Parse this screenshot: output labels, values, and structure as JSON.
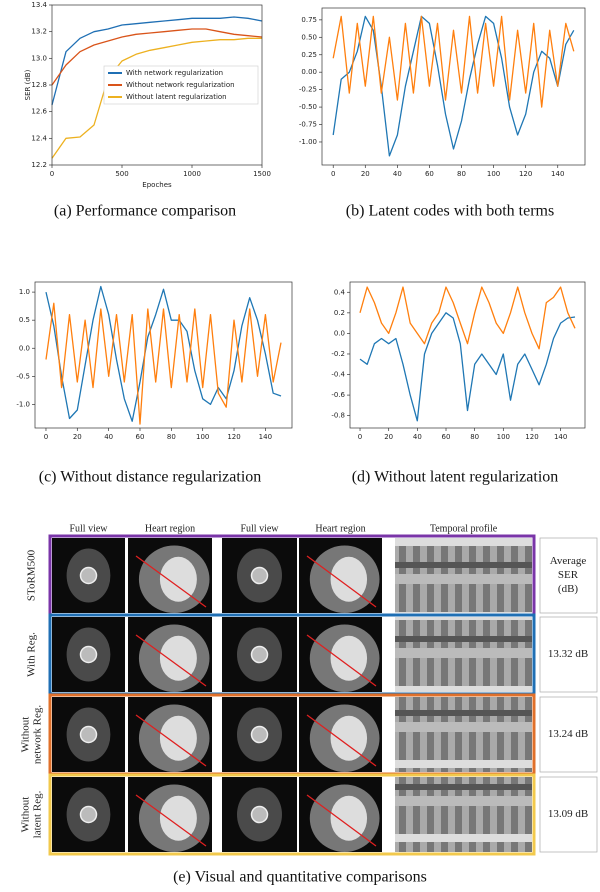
{
  "chart_data": [
    {
      "type": "line",
      "caption": "(a) Performance comparison",
      "xlabel": "Epoches",
      "ylabel": "SER (dB)",
      "x": [
        0,
        100,
        200,
        300,
        400,
        500,
        600,
        700,
        800,
        900,
        1000,
        1100,
        1200,
        1300,
        1400,
        1500
      ],
      "xlim": [
        0,
        1500
      ],
      "xticks": [
        0,
        500,
        1000,
        1500
      ],
      "ylim": [
        12.2,
        13.4
      ],
      "yticks": [
        12.2,
        12.4,
        12.6,
        12.8,
        {
          "value": 13,
          "label": "13.0"
        },
        13.2,
        13.4
      ],
      "legend": "right",
      "series": [
        {
          "name": "With network regularization",
          "color": "#1f6fb4",
          "values": [
            12.65,
            13.05,
            13.15,
            13.2,
            13.22,
            13.25,
            13.26,
            13.27,
            13.28,
            13.29,
            13.3,
            13.3,
            13.3,
            13.31,
            13.3,
            13.28
          ]
        },
        {
          "name": "Without network regularization",
          "color": "#d9541a",
          "values": [
            12.8,
            12.95,
            13.05,
            13.1,
            13.13,
            13.16,
            13.18,
            13.19,
            13.2,
            13.21,
            13.22,
            13.22,
            13.2,
            13.18,
            13.17,
            13.16
          ]
        },
        {
          "name": "Without latent regularization",
          "color": "#edb120",
          "values": [
            12.25,
            12.4,
            12.41,
            12.5,
            12.85,
            12.98,
            13.03,
            13.06,
            13.08,
            13.1,
            13.12,
            13.13,
            13.14,
            13.14,
            13.15,
            13.15
          ]
        }
      ]
    },
    {
      "type": "line",
      "caption": "(b) Latent codes with both terms",
      "x": [
        0,
        5,
        10,
        15,
        20,
        25,
        30,
        35,
        40,
        45,
        50,
        55,
        60,
        65,
        70,
        75,
        80,
        85,
        90,
        95,
        100,
        105,
        110,
        115,
        120,
        125,
        130,
        135,
        140,
        145,
        150
      ],
      "xlim": [
        -7,
        157
      ],
      "xticks": [
        0,
        20,
        40,
        60,
        80,
        100,
        120,
        140
      ],
      "ylim": [
        -1.33,
        0.92
      ],
      "yticks": [
        {
          "value": -1,
          "label": "-1.00"
        },
        -0.75,
        {
          "value": -0.5,
          "label": "-0.50"
        },
        -0.25,
        {
          "value": 0,
          "label": "0.00"
        },
        0.25,
        {
          "value": 0.5,
          "label": "0.50"
        },
        0.75
      ],
      "series": [
        {
          "color": "#1f77b4",
          "values": [
            -0.9,
            -0.1,
            0.0,
            0.3,
            0.8,
            0.6,
            -0.2,
            -1.2,
            -0.9,
            -0.2,
            0.3,
            0.8,
            0.7,
            0.1,
            -0.6,
            -1.1,
            -0.7,
            -0.1,
            0.4,
            0.8,
            0.7,
            0.2,
            -0.5,
            -0.9,
            -0.6,
            0.0,
            0.3,
            0.2,
            -0.2,
            0.4,
            0.6
          ]
        },
        {
          "color": "#ff7f0e",
          "values": [
            0.2,
            0.8,
            -0.3,
            0.7,
            -0.2,
            0.8,
            -0.3,
            0.5,
            -0.4,
            0.7,
            -0.3,
            0.8,
            -0.2,
            0.7,
            -0.4,
            0.6,
            -0.3,
            0.8,
            -0.3,
            0.7,
            -0.2,
            0.8,
            -0.4,
            0.6,
            -0.3,
            0.7,
            -0.5,
            0.6,
            -0.2,
            0.7,
            0.3
          ]
        }
      ]
    },
    {
      "type": "line",
      "caption": "(c) Without distance regularization",
      "x": [
        0,
        5,
        10,
        15,
        20,
        25,
        30,
        35,
        40,
        45,
        50,
        55,
        60,
        65,
        70,
        75,
        80,
        85,
        90,
        95,
        100,
        105,
        110,
        115,
        120,
        125,
        130,
        135,
        140,
        145,
        150
      ],
      "xlim": [
        -7,
        157
      ],
      "xticks": [
        0,
        20,
        40,
        60,
        80,
        100,
        120,
        140
      ],
      "ylim": [
        -1.42,
        1.18
      ],
      "yticks": [
        {
          "value": -1,
          "label": "-1.0"
        },
        -0.5,
        {
          "value": 0,
          "label": "0.0"
        },
        0.5,
        {
          "value": 1,
          "label": "1.0"
        }
      ],
      "series": [
        {
          "color": "#1f77b4",
          "values": [
            1.0,
            0.4,
            -0.5,
            -1.25,
            -1.1,
            -0.3,
            0.5,
            1.1,
            0.6,
            -0.2,
            -0.9,
            -1.3,
            -0.6,
            0.2,
            0.6,
            1.05,
            0.5,
            0.5,
            0.3,
            -0.4,
            -0.9,
            -1.0,
            -0.7,
            -0.9,
            -0.4,
            0.4,
            0.9,
            0.5,
            -0.1,
            -0.8,
            -0.85
          ]
        },
        {
          "color": "#ff7f0e",
          "values": [
            -0.2,
            0.8,
            -0.7,
            0.6,
            -0.6,
            0.5,
            -0.7,
            0.7,
            -0.5,
            0.6,
            -0.6,
            0.6,
            -1.35,
            0.7,
            -0.6,
            0.7,
            -0.7,
            0.6,
            -0.6,
            0.7,
            -0.7,
            0.6,
            -0.8,
            -1.05,
            0.5,
            -0.6,
            0.7,
            -0.5,
            0.6,
            -0.6,
            0.1
          ]
        }
      ]
    },
    {
      "type": "line",
      "caption": "(d) Without latent regularization",
      "x": [
        0,
        5,
        10,
        15,
        20,
        25,
        30,
        35,
        40,
        45,
        50,
        55,
        60,
        65,
        70,
        75,
        80,
        85,
        90,
        95,
        100,
        105,
        110,
        115,
        120,
        125,
        130,
        135,
        140,
        145,
        150
      ],
      "xlim": [
        -7,
        157
      ],
      "xticks": [
        0,
        20,
        40,
        60,
        80,
        100,
        120,
        140
      ],
      "ylim": [
        -0.92,
        0.5
      ],
      "yticks": [
        -0.8,
        -0.6,
        -0.4,
        -0.2,
        {
          "value": 0,
          "label": "0.0"
        },
        0.2,
        0.4
      ],
      "series": [
        {
          "color": "#1f77b4",
          "values": [
            -0.25,
            -0.3,
            -0.1,
            -0.05,
            -0.1,
            -0.05,
            -0.3,
            -0.6,
            -0.85,
            -0.2,
            0.0,
            0.1,
            0.2,
            0.15,
            -0.1,
            -0.75,
            -0.3,
            -0.2,
            -0.3,
            -0.4,
            -0.2,
            -0.65,
            -0.3,
            -0.2,
            -0.35,
            -0.5,
            -0.3,
            -0.05,
            0.1,
            0.15,
            0.16
          ]
        },
        {
          "color": "#ff7f0e",
          "values": [
            0.2,
            0.45,
            0.3,
            0.1,
            0.0,
            0.2,
            0.45,
            0.1,
            0.0,
            -0.1,
            0.1,
            0.2,
            0.45,
            0.3,
            0.1,
            -0.1,
            0.2,
            0.45,
            0.3,
            0.1,
            0.0,
            0.2,
            0.45,
            0.2,
            0.0,
            -0.15,
            0.3,
            0.35,
            0.45,
            0.2,
            0.05
          ]
        }
      ]
    }
  ],
  "comparison": {
    "caption": "(e) Visual and quantitative comparisons",
    "columns": [
      "Full view",
      "Heart region",
      "Full view",
      "Heart region",
      "Temporal profile"
    ],
    "ser_header": [
      "Average",
      "SER",
      "(dB)"
    ],
    "rows": [
      {
        "label": [
          "SToRM500"
        ],
        "color": "#7a35a8"
      },
      {
        "label": [
          "With Reg."
        ],
        "color": "#1f6fb4",
        "ser": "13.32 dB"
      },
      {
        "label": [
          "Without",
          "network Reg."
        ],
        "color": "#e0702a",
        "ser": "13.24 dB"
      },
      {
        "label": [
          "Without",
          "latent Reg."
        ],
        "color": "#f2c94c",
        "ser": "13.09 dB"
      }
    ]
  }
}
